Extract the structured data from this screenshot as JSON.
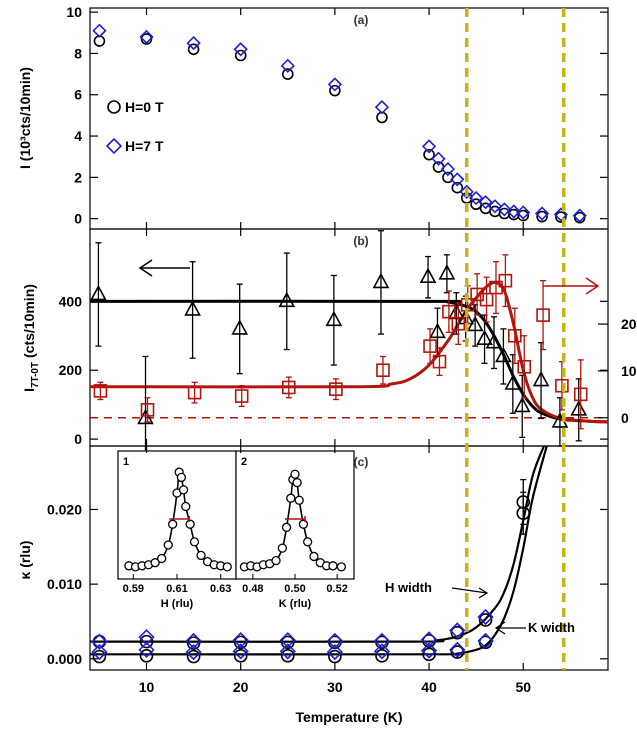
{
  "colors": {
    "black": "#000000",
    "blue": "#1f1fd8",
    "red": "#b3140c",
    "olive": "#c8b31a"
  },
  "xaxis": {
    "label": "Temperature (K)",
    "ticks": [
      10,
      20,
      30,
      40,
      50
    ],
    "range": [
      4,
      59
    ]
  },
  "transition_lines_K": [
    44,
    54.3
  ],
  "chart_data": [
    {
      "panel": "(a)",
      "type": "scatter",
      "ylabel": "I (10³cts/10min)",
      "ylim": [
        -0.5,
        10.2
      ],
      "yticks": [
        0,
        2,
        4,
        6,
        8,
        10
      ],
      "legend": [
        {
          "name": "H=0 T",
          "marker": "circle",
          "color": "#000000"
        },
        {
          "name": "H=7 T",
          "marker": "diamond",
          "color": "#1f1fd8"
        }
      ],
      "series": [
        {
          "name": "H=0 T",
          "marker": "circle",
          "color": "#000000",
          "x": [
            5,
            10,
            15,
            20,
            25,
            30,
            35,
            40,
            41,
            42,
            43,
            44,
            45,
            46,
            47,
            48,
            49,
            50,
            52,
            54,
            56
          ],
          "y": [
            8.6,
            8.7,
            8.2,
            7.9,
            7.0,
            6.2,
            4.9,
            3.1,
            2.5,
            2.0,
            1.5,
            1.0,
            0.7,
            0.5,
            0.35,
            0.25,
            0.2,
            0.15,
            0.1,
            0.08,
            0.05
          ]
        },
        {
          "name": "H=7 T",
          "marker": "diamond",
          "color": "#1f1fd8",
          "x": [
            5,
            10,
            15,
            20,
            25,
            30,
            35,
            40,
            41,
            42,
            43,
            44,
            45,
            46,
            47,
            48,
            49,
            50,
            52,
            54,
            56
          ],
          "y": [
            9.1,
            8.8,
            8.5,
            8.2,
            7.4,
            6.5,
            5.4,
            3.5,
            2.9,
            2.4,
            1.9,
            1.3,
            1.0,
            0.8,
            0.6,
            0.45,
            0.35,
            0.3,
            0.25,
            0.2,
            0.15
          ]
        }
      ]
    },
    {
      "panel": "(b)",
      "type": "scatter",
      "ylabel": "I7T-0T (cts/10min)",
      "ylabel_main": "I",
      "ylabel_sub": "7T-0T",
      "ylabel_rest": " (cts/10min)",
      "ylim": [
        -20,
        610
      ],
      "yticks": [
        0,
        200,
        400
      ],
      "y2ticks_labels": [
        "0",
        "10",
        "20"
      ],
      "y2_values_in_left_units": [
        62,
        198,
        334
      ],
      "dashed_baseline": 62,
      "series": [
        {
          "name": "black triangles",
          "marker": "triangle",
          "color": "#000000",
          "x": [
            5,
            10,
            15,
            20,
            25,
            30,
            35,
            40,
            41,
            42,
            43,
            44,
            45,
            46,
            47,
            48,
            49,
            50,
            52,
            54,
            56
          ],
          "y": [
            420,
            60,
            375,
            320,
            400,
            345,
            455,
            470,
            310,
            480,
            365,
            350,
            330,
            290,
            280,
            240,
            160,
            95,
            170,
            50,
            85
          ],
          "err": [
            150,
            180,
            140,
            130,
            140,
            130,
            150,
            60,
            70,
            55,
            60,
            65,
            60,
            70,
            75,
            80,
            85,
            90,
            110,
            70,
            90
          ]
        },
        {
          "name": "red squares",
          "marker": "square",
          "color": "#b3140c",
          "x": [
            5,
            10,
            15,
            20,
            25,
            30,
            35,
            40,
            41,
            42,
            43,
            44,
            45,
            46,
            47,
            48,
            49,
            50,
            52,
            54,
            56
          ],
          "y": [
            140,
            85,
            135,
            125,
            150,
            145,
            200,
            270,
            225,
            370,
            335,
            390,
            420,
            405,
            440,
            460,
            300,
            210,
            360,
            155,
            130
          ],
          "err": [
            25,
            35,
            30,
            30,
            30,
            30,
            40,
            50,
            40,
            60,
            60,
            55,
            60,
            65,
            75,
            75,
            80,
            90,
            100,
            70,
            100
          ]
        }
      ],
      "fits": [
        {
          "color": "#000000",
          "x": [
            4,
            40,
            42,
            44,
            45,
            46,
            47,
            48,
            49,
            50,
            51,
            52,
            54,
            57,
            59
          ],
          "y": [
            400,
            400,
            398,
            385,
            370,
            340,
            295,
            240,
            180,
            130,
            95,
            75,
            58,
            52,
            50
          ]
        },
        {
          "color": "#b3140c",
          "x": [
            4,
            32,
            36,
            38,
            40,
            42,
            43,
            44,
            45,
            46,
            47,
            48,
            49,
            50,
            51,
            52,
            54,
            57,
            59
          ],
          "y": [
            152,
            152,
            160,
            175,
            215,
            285,
            330,
            375,
            410,
            440,
            455,
            430,
            330,
            200,
            120,
            85,
            60,
            52,
            50
          ]
        }
      ],
      "arrows": [
        "left",
        "right"
      ]
    },
    {
      "panel": "(c)",
      "type": "scatter",
      "ylabel": "κ (rlu)",
      "ylim": [
        -0.0015,
        0.0285
      ],
      "yticks": [
        0.0,
        0.01,
        0.02
      ],
      "ytick_labels": [
        "0.000",
        "0.010",
        "0.020"
      ],
      "series": [
        {
          "name": "H width",
          "marker": "circle",
          "color": "#000000",
          "x": [
            5,
            10,
            15,
            20,
            25,
            30,
            35,
            40,
            43,
            46,
            50
          ],
          "y": [
            0.0023,
            0.0023,
            0.0021,
            0.0022,
            0.0022,
            0.0022,
            0.0022,
            0.0024,
            0.0035,
            0.0052,
            0.021
          ],
          "err": [
            0,
            0,
            0,
            0,
            0,
            0,
            0,
            0,
            0,
            0,
            0.003
          ]
        },
        {
          "name": "H width (7T)",
          "marker": "diamond",
          "color": "#1f1fd8",
          "x": [
            5,
            10,
            15,
            20,
            25,
            30,
            35,
            40,
            43,
            46
          ],
          "y": [
            0.0023,
            0.0029,
            0.0024,
            0.0025,
            0.0025,
            0.0024,
            0.0024,
            0.0026,
            0.0038,
            0.0056
          ]
        },
        {
          "name": "K width",
          "marker": "circle",
          "color": "#000000",
          "x": [
            5,
            10,
            15,
            20,
            25,
            30,
            35,
            40,
            43,
            46,
            50
          ],
          "y": [
            0.0003,
            0.0004,
            0.0003,
            0.0004,
            0.0004,
            0.0003,
            0.0004,
            0.0006,
            0.0009,
            0.0022,
            0.0195
          ],
          "err": [
            0,
            0,
            0,
            0,
            0,
            0,
            0,
            0,
            0,
            0,
            0.0028
          ]
        },
        {
          "name": "K width (7T)",
          "marker": "diamond",
          "color": "#1f1fd8",
          "x": [
            5,
            10,
            15,
            20,
            25,
            30,
            35,
            40,
            43,
            46
          ],
          "y": [
            0.0009,
            0.0012,
            0.0009,
            0.001,
            0.001,
            0.0009,
            0.001,
            0.0011,
            0.0012,
            0.0024
          ]
        }
      ],
      "fits": [
        {
          "label": "H width",
          "color": "#000000",
          "x": [
            4,
            38,
            41,
            43,
            45,
            47,
            48,
            49,
            50,
            51,
            52.2
          ],
          "y": [
            0.0023,
            0.0023,
            0.0025,
            0.003,
            0.0042,
            0.0068,
            0.009,
            0.0128,
            0.0185,
            0.0245,
            0.0285
          ]
        },
        {
          "label": "K width",
          "color": "#000000",
          "x": [
            4,
            40,
            43,
            45,
            46,
            47,
            48,
            49,
            50,
            51,
            52.5
          ],
          "y": [
            0.0006,
            0.0006,
            0.0007,
            0.0012,
            0.0018,
            0.0032,
            0.0055,
            0.0092,
            0.0148,
            0.0215,
            0.0285
          ]
        }
      ],
      "annotations": [
        "H width",
        "K width"
      ],
      "insets": [
        {
          "label": "1",
          "xlabel": "H (rlu)",
          "xticks": [
            0.59,
            0.61,
            0.63
          ],
          "xlim": [
            0.583,
            0.637
          ],
          "x": [
            0.588,
            0.591,
            0.594,
            0.597,
            0.6,
            0.603,
            0.606,
            0.608,
            0.61,
            0.611,
            0.612,
            0.613,
            0.614,
            0.616,
            0.618,
            0.621,
            0.624,
            0.627,
            0.63,
            0.633
          ],
          "y": [
            0.05,
            0.04,
            0.05,
            0.06,
            0.08,
            0.12,
            0.25,
            0.45,
            0.75,
            0.95,
            0.9,
            0.78,
            0.62,
            0.45,
            0.28,
            0.15,
            0.09,
            0.06,
            0.05,
            0.04
          ]
        },
        {
          "label": "2",
          "xlabel": "K (rlu)",
          "xticks": [
            0.48,
            0.5,
            0.52
          ],
          "xlim": [
            0.472,
            0.528
          ],
          "x": [
            0.476,
            0.479,
            0.482,
            0.485,
            0.488,
            0.491,
            0.494,
            0.496,
            0.498,
            0.499,
            0.5,
            0.501,
            0.502,
            0.504,
            0.506,
            0.509,
            0.512,
            0.515,
            0.518,
            0.522
          ],
          "y": [
            0.04,
            0.05,
            0.04,
            0.06,
            0.07,
            0.1,
            0.22,
            0.42,
            0.7,
            0.88,
            0.93,
            0.85,
            0.68,
            0.45,
            0.28,
            0.14,
            0.08,
            0.05,
            0.05,
            0.04
          ]
        }
      ]
    }
  ]
}
